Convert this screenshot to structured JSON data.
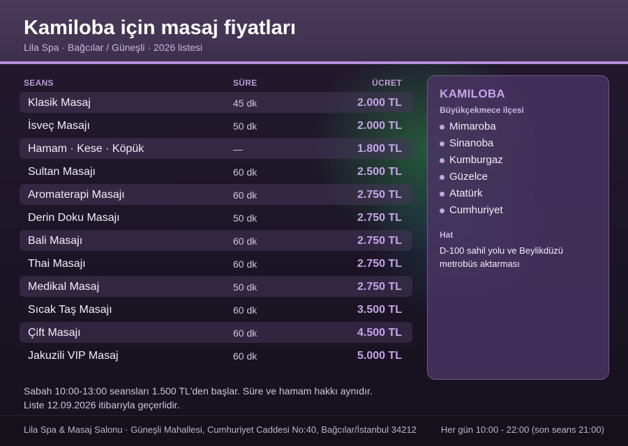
{
  "header": {
    "title": "Kamiloba için masaj fiyatları",
    "subtitle": "Lila Spa · Bağcılar / Güneşli · 2026 listesi"
  },
  "table": {
    "columns": {
      "session": "SEANS",
      "duration": "SÜRE",
      "price": "ÜCRET"
    },
    "rows": [
      {
        "name": "Klasik Masaj",
        "duration": "45 dk",
        "price": "2.000 TL"
      },
      {
        "name": "İsveç Masajı",
        "duration": "50 dk",
        "price": "2.000 TL"
      },
      {
        "name": "Hamam · Kese · Köpük",
        "duration": "—",
        "price": "1.800 TL"
      },
      {
        "name": "Sultan Masajı",
        "duration": "60 dk",
        "price": "2.500 TL"
      },
      {
        "name": "Aromaterapi Masajı",
        "duration": "60 dk",
        "price": "2.750 TL"
      },
      {
        "name": "Derin Doku Masajı",
        "duration": "50 dk",
        "price": "2.750 TL"
      },
      {
        "name": "Bali Masajı",
        "duration": "60 dk",
        "price": "2.750 TL"
      },
      {
        "name": "Thai Masajı",
        "duration": "60 dk",
        "price": "2.750 TL"
      },
      {
        "name": "Medikal Masaj",
        "duration": "50 dk",
        "price": "2.750 TL"
      },
      {
        "name": "Sıcak Taş Masajı",
        "duration": "60 dk",
        "price": "3.500 TL"
      },
      {
        "name": "Çift Masajı",
        "duration": "60 dk",
        "price": "4.500 TL"
      },
      {
        "name": "Jakuzili VIP Masaj",
        "duration": "60 dk",
        "price": "5.000 TL"
      }
    ]
  },
  "note": {
    "line1": "Sabah 10:00-13:00 seansları 1.500 TL'den başlar. Süre ve hamam hakkı aynıdır.",
    "line2": "Liste 12.09.2026 itibarıyla geçerlidir."
  },
  "card": {
    "title": "KAMILOBA",
    "district": "Büyükçekmece ilçesi",
    "neighborhoods": [
      "Mimaroba",
      "Sinanoba",
      "Kumburgaz",
      "Güzelce",
      "Atatürk",
      "Cumhuriyet"
    ],
    "hat_label": "Hat",
    "hat_text": "D-100 sahil yolu ve Beylikdüzü metrobüs aktarması"
  },
  "footer": {
    "address": "Lila Spa & Masaj Salonu · Güneşli Mahallesi, Cumhuriyet Caddesi No:40, Bağcılar/İstanbul 34212",
    "hours": "Her gün 10:00 - 22:00 (son seans 21:00)"
  },
  "colors": {
    "accent": "#c7a4ea",
    "header_bg": "#4a3b5c",
    "accent_line": "#b88ed8"
  }
}
